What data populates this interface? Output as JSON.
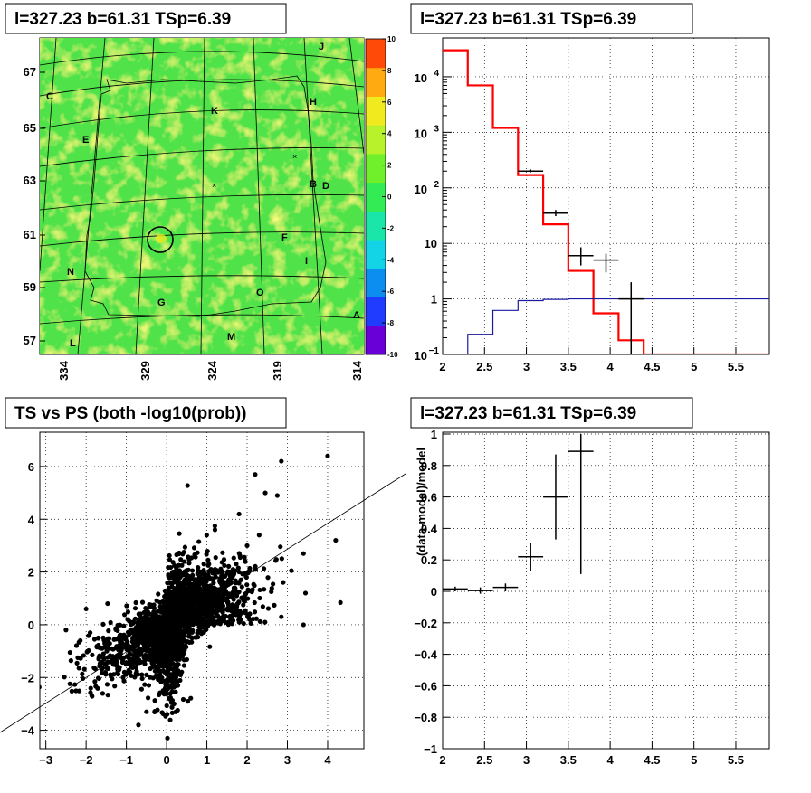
{
  "chart_data": [
    {
      "type": "heatmap",
      "title": "l=327.23 b=61.31 TSp=6.39",
      "yticks": [
        {
          "v": 57,
          "label": "57"
        },
        {
          "v": 59,
          "label": "59"
        },
        {
          "v": 61,
          "label": "61"
        },
        {
          "v": 63,
          "label": "63"
        },
        {
          "v": 65,
          "label": "65"
        },
        {
          "v": 67,
          "label": "67"
        }
      ],
      "xticks": [
        {
          "v": 334,
          "label": "334"
        },
        {
          "v": 329,
          "label": "329"
        },
        {
          "v": 324,
          "label": "324"
        },
        {
          "v": 319,
          "label": "319"
        },
        {
          "v": 314,
          "label": "314"
        }
      ],
      "colorbar": {
        "min": -10,
        "max": 10,
        "ticks": [
          "10",
          "8",
          "6",
          "4",
          "2",
          "0",
          "-2",
          "-4",
          "-6",
          "-8",
          "-10"
        ],
        "colors": [
          "#6a00d8",
          "#1f3cff",
          "#0b8ef0",
          "#12d4e6",
          "#19e6a8",
          "#33ec55",
          "#6ff02a",
          "#b8f22a",
          "#f0ea1e",
          "#ffaa10",
          "#ff4a08"
        ]
      },
      "background_color": "#4fe24a",
      "annotations": [
        "C",
        "E",
        "K",
        "H",
        "J",
        "B",
        "D",
        "F",
        "I",
        "N",
        "G",
        "O",
        "A",
        "M",
        "L"
      ]
    },
    {
      "type": "line",
      "title": "l=327.23 b=61.31 TSp=6.39",
      "yscale": "log",
      "xlim": [
        2,
        5.9
      ],
      "ylim": [
        0.1,
        50000
      ],
      "xticks": [
        "2",
        "2.5",
        "3",
        "3.5",
        "4",
        "4.5",
        "5",
        "5.5"
      ],
      "yticks": [
        {
          "v": 0.1,
          "base": "10",
          "exp": "−1"
        },
        {
          "v": 1,
          "label": "1"
        },
        {
          "v": 10,
          "label": "10"
        },
        {
          "v": 100,
          "base": "10",
          "exp": "2"
        },
        {
          "v": 1000,
          "base": "10",
          "exp": "3"
        },
        {
          "v": 10000,
          "base": "10",
          "exp": "4"
        }
      ],
      "series": [
        {
          "color": "#ff0000",
          "style": "step",
          "edges": [
            2,
            2.3,
            2.6,
            2.9,
            3.2,
            3.5,
            3.8,
            4.1,
            4.4,
            5.9
          ],
          "values": [
            30000,
            7000,
            1200,
            170,
            22,
            3.2,
            0.55,
            0.18,
            0.1
          ]
        },
        {
          "color": "#1a1aa0",
          "style": "step",
          "edges": [
            2.3,
            2.6,
            2.9,
            3.2,
            3.5,
            3.8,
            4.1,
            4.4,
            5.9
          ],
          "values": [
            0.23,
            0.62,
            0.93,
            0.98,
            1.0,
            1.0,
            1.0,
            1.0
          ]
        }
      ],
      "points": [
        {
          "x": 3.05,
          "y": 200,
          "xerr": 0.15,
          "ylo": 190,
          "yhi": 215
        },
        {
          "x": 3.35,
          "y": 35,
          "xerr": 0.15,
          "ylo": 31,
          "yhi": 40
        },
        {
          "x": 3.65,
          "y": 6,
          "xerr": 0.15,
          "ylo": 4,
          "yhi": 8.5
        },
        {
          "x": 3.95,
          "y": 5,
          "xerr": 0.15,
          "ylo": 3,
          "yhi": 6.5
        },
        {
          "x": 4.25,
          "y": 1,
          "xerr": 0.15,
          "ylo": 0.1,
          "yhi": 2
        }
      ]
    },
    {
      "type": "scatter",
      "title": "TS vs PS (both -log10(prob))",
      "xlim": [
        -3.15,
        4.9
      ],
      "ylim": [
        -4.7,
        7.3
      ],
      "xticks": [
        "−3",
        "−2",
        "−1",
        "0",
        "1",
        "2",
        "3",
        "4"
      ],
      "yticks": [
        "−4",
        "−2",
        "0",
        "2",
        "4",
        "6"
      ],
      "xtick_values": [
        -3,
        -2,
        -1,
        0,
        1,
        2,
        3,
        4
      ],
      "ytick_values": [
        -4,
        -2,
        0,
        2,
        4,
        6
      ],
      "line": {
        "x1": -4.4,
        "y1": -4.4,
        "x2": 5.8,
        "y2": 5.8
      },
      "outliers": [
        [
          4.0,
          6.4
        ],
        [
          2.85,
          6.2
        ],
        [
          4.2,
          3.2
        ],
        [
          2.45,
          5.0
        ],
        [
          2.75,
          4.9
        ],
        [
          2.2,
          5.7
        ],
        [
          1.8,
          4.2
        ],
        [
          3.4,
          2.7
        ],
        [
          3.1,
          2.05
        ],
        [
          3.45,
          1.2
        ],
        [
          3.4,
          0.0
        ],
        [
          2.3,
          3.4
        ],
        [
          2.0,
          3.0
        ],
        [
          1.2,
          3.6
        ],
        [
          0.8,
          3.15
        ],
        [
          -2.4,
          -1.05
        ],
        [
          -2.5,
          -0.2
        ],
        [
          -1.7,
          -0.5
        ],
        [
          -2.0,
          0.6
        ],
        [
          -1.9,
          -0.3
        ],
        [
          -0.7,
          -3.8
        ],
        [
          -0.5,
          -3.3
        ],
        [
          1.05,
          2.3
        ],
        [
          2.6,
          1.25
        ],
        [
          2.85,
          0.3
        ],
        [
          1.8,
          2.0
        ]
      ]
    },
    {
      "type": "scatter",
      "title": "l=327.23 b=61.31 TSp=6.39",
      "ylabel": "(data-model)/model",
      "xlim": [
        2,
        5.9
      ],
      "ylim": [
        -1,
        1
      ],
      "xticks": [
        "2",
        "2.5",
        "3",
        "3.5",
        "4",
        "4.5",
        "5",
        "5.5"
      ],
      "yticks": [
        "1",
        "0.8",
        "0.6",
        "0.4",
        "0.2",
        "0",
        "−0.2",
        "−0.4",
        "−0.6",
        "−0.8",
        "−1"
      ],
      "points": [
        {
          "x": 2.15,
          "y": 0.015,
          "xerr": 0.15,
          "ylo": 0.0,
          "yhi": 0.03
        },
        {
          "x": 2.45,
          "y": 0.005,
          "xerr": 0.15,
          "ylo": -0.015,
          "yhi": 0.025
        },
        {
          "x": 2.75,
          "y": 0.025,
          "xerr": 0.15,
          "ylo": 0.0,
          "yhi": 0.05
        },
        {
          "x": 3.05,
          "y": 0.22,
          "xerr": 0.15,
          "ylo": 0.13,
          "yhi": 0.31
        },
        {
          "x": 3.35,
          "y": 0.6,
          "xerr": 0.15,
          "ylo": 0.33,
          "yhi": 0.87
        },
        {
          "x": 3.65,
          "y": 0.89,
          "xerr": 0.15,
          "ylo": 0.11,
          "yhi": 1.0
        }
      ]
    }
  ]
}
